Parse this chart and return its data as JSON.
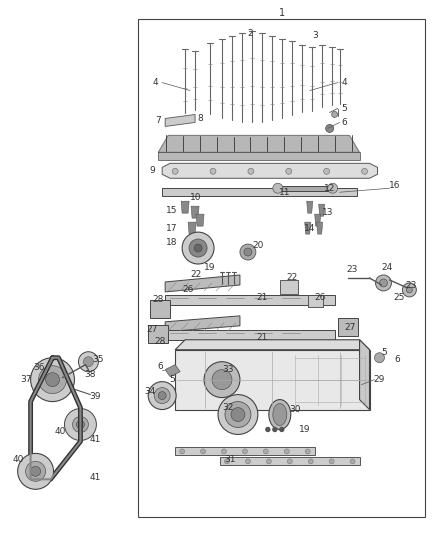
{
  "background_color": "#ffffff",
  "border_color": "#444444",
  "text_color": "#333333",
  "fig_width": 4.38,
  "fig_height": 5.33,
  "dpi": 100
}
